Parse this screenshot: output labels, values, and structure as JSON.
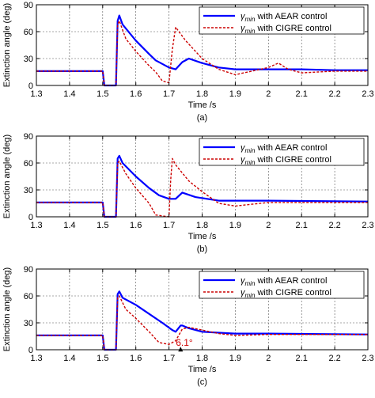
{
  "chart_data": [
    {
      "type": "line",
      "panel_label": "(a)",
      "xlabel": "Time /s",
      "ylabel": "Extinction angle (deg)",
      "xlim": [
        1.3,
        2.3
      ],
      "ylim": [
        0,
        90
      ],
      "xticks": [
        "1.3",
        "1.4",
        "1.5",
        "1.6",
        "1.7",
        "1.8",
        "1.9",
        "2",
        "2.1",
        "2.2",
        "2.3"
      ],
      "yticks": [
        "0",
        "30",
        "60",
        "90"
      ],
      "grid": true,
      "legend_position": "top-right",
      "series": [
        {
          "name_main": "γ",
          "name_sub": "min",
          "name_rest": " with AEAR control",
          "color": "#0000ff",
          "style": "solid",
          "x": [
            1.3,
            1.5,
            1.505,
            1.54,
            1.545,
            1.55,
            1.56,
            1.6,
            1.64,
            1.66,
            1.7,
            1.72,
            1.74,
            1.76,
            1.8,
            1.85,
            1.9,
            2.0,
            2.1,
            2.2,
            2.3
          ],
          "y": [
            16,
            16,
            0,
            0,
            72,
            78,
            68,
            50,
            35,
            28,
            20,
            18,
            26,
            30,
            25,
            20,
            18,
            18,
            18,
            17,
            17
          ]
        },
        {
          "name_main": "γ",
          "name_sub": "min",
          "name_rest": " with CIGRE control",
          "color": "#cc0000",
          "style": "dashed",
          "x": [
            1.3,
            1.5,
            1.505,
            1.54,
            1.545,
            1.55,
            1.57,
            1.6,
            1.64,
            1.66,
            1.68,
            1.7,
            1.71,
            1.72,
            1.75,
            1.8,
            1.85,
            1.9,
            1.95,
            2.0,
            2.03,
            2.06,
            2.1,
            2.2,
            2.3
          ],
          "y": [
            16,
            16,
            0,
            0,
            68,
            72,
            52,
            38,
            22,
            15,
            5,
            3,
            40,
            65,
            50,
            30,
            18,
            12,
            16,
            20,
            25,
            18,
            14,
            16,
            16
          ]
        }
      ]
    },
    {
      "type": "line",
      "panel_label": "(b)",
      "xlabel": "Time /s",
      "ylabel": "Extinction angle (deg)",
      "xlim": [
        1.3,
        2.3
      ],
      "ylim": [
        0,
        90
      ],
      "xticks": [
        "1.3",
        "1.4",
        "1.5",
        "1.6",
        "1.7",
        "1.8",
        "1.9",
        "2",
        "2.1",
        "2.2",
        "2.3"
      ],
      "yticks": [
        "0",
        "30",
        "60",
        "90"
      ],
      "grid": true,
      "legend_position": "top-right",
      "series": [
        {
          "name_main": "γ",
          "name_sub": "min",
          "name_rest": " with AEAR control",
          "color": "#0000ff",
          "style": "solid",
          "x": [
            1.3,
            1.5,
            1.505,
            1.54,
            1.545,
            1.55,
            1.56,
            1.6,
            1.64,
            1.67,
            1.7,
            1.72,
            1.74,
            1.78,
            1.85,
            2.0,
            2.3
          ],
          "y": [
            16,
            16,
            0,
            0,
            65,
            68,
            60,
            45,
            32,
            24,
            20,
            20,
            27,
            22,
            18,
            18,
            17
          ]
        },
        {
          "name_main": "γ",
          "name_sub": "min",
          "name_rest": " with CIGRE control",
          "color": "#cc0000",
          "style": "dashed",
          "x": [
            1.3,
            1.5,
            1.505,
            1.54,
            1.545,
            1.55,
            1.57,
            1.6,
            1.64,
            1.66,
            1.7,
            1.705,
            1.71,
            1.72,
            1.76,
            1.8,
            1.85,
            1.9,
            1.95,
            2.0,
            2.3
          ],
          "y": [
            16,
            16,
            0,
            0,
            60,
            62,
            48,
            32,
            15,
            2,
            0,
            40,
            65,
            58,
            40,
            28,
            15,
            12,
            14,
            16,
            16
          ]
        }
      ]
    },
    {
      "type": "line",
      "panel_label": "(c)",
      "xlabel": "Time /s",
      "ylabel": "Extinction angle (deg)",
      "xlim": [
        1.3,
        2.3
      ],
      "ylim": [
        0,
        90
      ],
      "xticks": [
        "1.3",
        "1.4",
        "1.5",
        "1.6",
        "1.7",
        "1.8",
        "1.9",
        "2",
        "2.1",
        "2.2",
        "2.3"
      ],
      "yticks": [
        "0",
        "30",
        "60",
        "90"
      ],
      "grid": true,
      "legend_position": "top-right",
      "annotation": {
        "text": "6.1°",
        "x": 1.735,
        "y": 6
      },
      "series": [
        {
          "name_main": "γ",
          "name_sub": "min",
          "name_rest": " with AEAR control",
          "color": "#0000ff",
          "style": "solid",
          "x": [
            1.3,
            1.5,
            1.505,
            1.54,
            1.545,
            1.55,
            1.56,
            1.6,
            1.64,
            1.68,
            1.71,
            1.72,
            1.735,
            1.74,
            1.76,
            1.8,
            1.9,
            2.0,
            2.3
          ],
          "y": [
            16,
            16,
            0,
            0,
            62,
            65,
            58,
            50,
            40,
            30,
            22,
            20,
            27,
            27,
            24,
            20,
            18,
            18,
            17
          ]
        },
        {
          "name_main": "γ",
          "name_sub": "min",
          "name_rest": " with CIGRE control",
          "color": "#cc0000",
          "style": "dashed",
          "x": [
            1.3,
            1.5,
            1.505,
            1.54,
            1.545,
            1.55,
            1.57,
            1.6,
            1.64,
            1.67,
            1.7,
            1.72,
            1.74,
            1.76,
            1.8,
            1.85,
            1.9,
            2.0,
            2.3
          ],
          "y": [
            16,
            16,
            0,
            0,
            58,
            60,
            45,
            35,
            20,
            8,
            6,
            10,
            23,
            25,
            22,
            18,
            16,
            17,
            17
          ]
        }
      ]
    }
  ]
}
